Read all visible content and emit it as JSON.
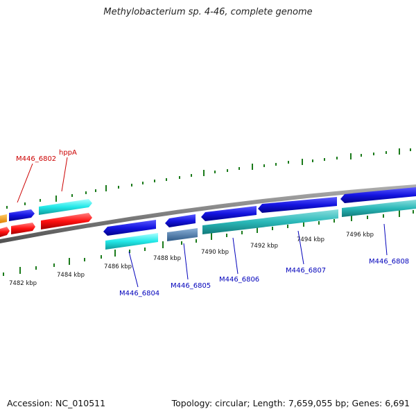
{
  "title": "Methylobacterium sp. 4-46, complete genome",
  "footer": {
    "accession": "Accession: NC_010511",
    "summary": "Topology: circular; Length: 7,659,055 bp; Genes: 6,691"
  },
  "colors": {
    "backbone": "#808080",
    "tick_major": "#1a7a1a",
    "tick_minor": "#1a7a1a",
    "label_red": "#cc0000",
    "label_blue": "#0000bb",
    "blue_gene": "#1414e0",
    "cyan_gene": "#22e8e8",
    "teal_gene": "#2ab8b8",
    "red_gene": "#ff1010",
    "orange_gene": "#ff9900",
    "steel_gene": "#4a7aaa"
  },
  "outer_ticks": [
    {
      "pos": 7482,
      "label": "7482 kbp"
    },
    {
      "pos": 7484,
      "label": "7484 kbp"
    },
    {
      "pos": 7486,
      "label": "7486 kbp"
    },
    {
      "pos": 7488,
      "label": "7488 kbp"
    }
  ],
  "inner_ticks": [
    {
      "pos": 7490,
      "label": "7490 kbp"
    },
    {
      "pos": 7492,
      "label": "7492 kbp"
    },
    {
      "pos": 7494,
      "label": "7494 kbp"
    },
    {
      "pos": 7496,
      "label": "7496 kbp"
    }
  ],
  "genes": [
    {
      "name": "M446_6802",
      "strand": "+",
      "color": "red"
    },
    {
      "name": "hppA",
      "strand": "+",
      "color": "red"
    },
    {
      "name": "M446_6804",
      "strand": "-",
      "color": "blue"
    },
    {
      "name": "M446_6805",
      "strand": "-",
      "color": "blue"
    },
    {
      "name": "M446_6806",
      "strand": "-",
      "color": "blue"
    },
    {
      "name": "M446_6807",
      "strand": "-",
      "color": "blue"
    },
    {
      "name": "M446_6808",
      "strand": "-",
      "color": "blue"
    }
  ]
}
